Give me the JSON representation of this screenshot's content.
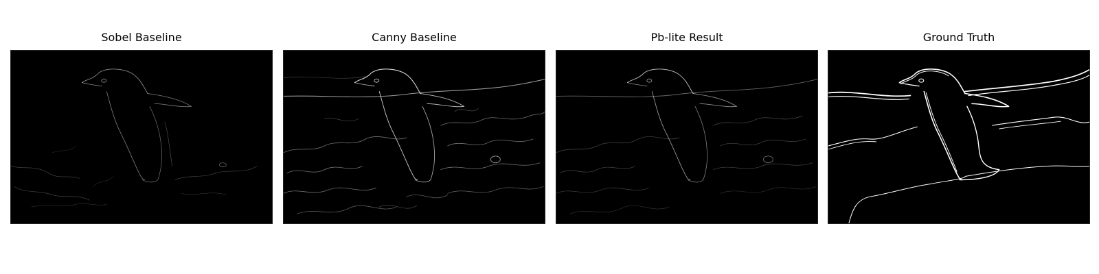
{
  "panels": [
    {
      "title": "Sobel Baseline",
      "image": "edge-map-sobel"
    },
    {
      "title": "Canny Baseline",
      "image": "edge-map-canny"
    },
    {
      "title": "Pb-lite Result",
      "image": "edge-map-pblite"
    },
    {
      "title": "Ground Truth",
      "image": "edge-map-ground-truth"
    }
  ],
  "colors": {
    "background": "#ffffff",
    "image_background": "#000000",
    "edge": "#ffffff"
  }
}
